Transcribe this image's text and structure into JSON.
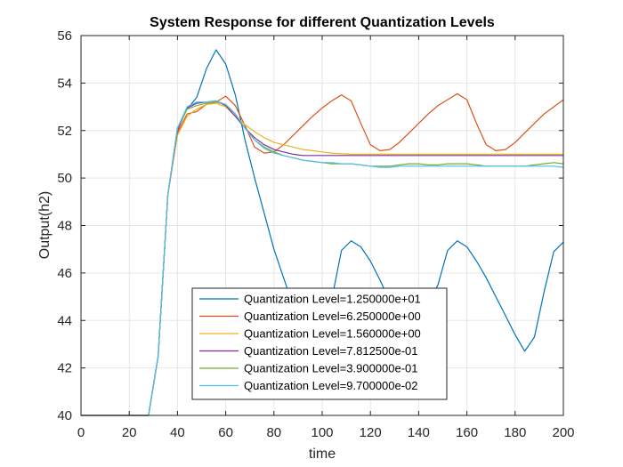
{
  "chart_data": {
    "type": "line",
    "title": "System Response for different Quantization Levels",
    "xlabel": "time",
    "ylabel": "Output(h2)",
    "xlim": [
      0,
      200
    ],
    "ylim": [
      40,
      56
    ],
    "xticks": [
      0,
      20,
      40,
      60,
      80,
      100,
      120,
      140,
      160,
      180,
      200
    ],
    "yticks": [
      40,
      42,
      44,
      46,
      48,
      50,
      52,
      54,
      56
    ],
    "grid": true,
    "legend_position": "bottom-center",
    "series": [
      {
        "name": "Quantization Level=1.250000e+01",
        "color": "#0072BD",
        "x": [
          0,
          4,
          8,
          12,
          16,
          20,
          24,
          28,
          32,
          36,
          40,
          44,
          48,
          52,
          56,
          60,
          64,
          68,
          72,
          76,
          80,
          84,
          88,
          92,
          96,
          100,
          104,
          108,
          112,
          116,
          120,
          124,
          128,
          132,
          136,
          140,
          144,
          148,
          152,
          156,
          160,
          164,
          168,
          172,
          176,
          180,
          184,
          188,
          192,
          196,
          200
        ],
        "y": [
          40,
          40,
          40,
          40,
          40,
          40,
          40,
          40,
          42.5,
          49.3,
          52.1,
          52.9,
          53.4,
          54.6,
          55.4,
          54.8,
          53.5,
          51.6,
          50.0,
          48.5,
          47.0,
          45.8,
          44.6,
          44.3,
          44.3,
          44.2,
          44.9,
          46.95,
          47.35,
          47.1,
          46.5,
          45.7,
          44.8,
          44.5,
          44.4,
          44.4,
          44.7,
          45.5,
          46.95,
          47.35,
          47.1,
          46.5,
          45.8,
          45.0,
          44.2,
          43.4,
          42.7,
          43.3,
          45.2,
          46.9,
          47.3
        ]
      },
      {
        "name": "Quantization Level=6.250000e+00",
        "color": "#D95319",
        "x": [
          0,
          4,
          8,
          12,
          16,
          20,
          24,
          28,
          32,
          36,
          40,
          44,
          48,
          52,
          56,
          60,
          64,
          68,
          72,
          76,
          80,
          84,
          88,
          92,
          96,
          100,
          104,
          108,
          112,
          116,
          120,
          124,
          128,
          132,
          136,
          140,
          144,
          148,
          152,
          156,
          160,
          164,
          168,
          172,
          176,
          180,
          184,
          188,
          192,
          196,
          200
        ],
        "y": [
          40,
          40,
          40,
          40,
          40,
          40,
          40,
          40,
          42.5,
          49.3,
          51.9,
          52.7,
          52.8,
          53.1,
          53.2,
          53.45,
          53.05,
          52.2,
          51.3,
          51.05,
          51.1,
          51.4,
          51.8,
          52.2,
          52.6,
          52.95,
          53.25,
          53.5,
          53.25,
          52.3,
          51.4,
          51.15,
          51.2,
          51.5,
          51.9,
          52.3,
          52.7,
          53.05,
          53.3,
          53.55,
          53.3,
          52.3,
          51.4,
          51.15,
          51.2,
          51.5,
          51.9,
          52.3,
          52.7,
          53.0,
          53.3
        ]
      },
      {
        "name": "Quantization Level=1.560000e+00",
        "color": "#EDB120",
        "x": [
          0,
          4,
          8,
          12,
          16,
          20,
          24,
          28,
          32,
          36,
          40,
          44,
          48,
          52,
          56,
          60,
          64,
          68,
          72,
          76,
          80,
          84,
          88,
          92,
          96,
          100,
          104,
          108,
          112,
          116,
          120,
          124,
          128,
          132,
          136,
          140,
          144,
          148,
          152,
          156,
          160,
          164,
          168,
          172,
          176,
          180,
          184,
          188,
          192,
          196,
          200
        ],
        "y": [
          40,
          40,
          40,
          40,
          40,
          40,
          40,
          40,
          42.5,
          49.3,
          51.8,
          52.6,
          52.9,
          53.1,
          53.15,
          53.0,
          52.6,
          52.25,
          51.95,
          51.7,
          51.5,
          51.4,
          51.3,
          51.2,
          51.15,
          51.1,
          51.05,
          51.02,
          51.0,
          51.0,
          51.0,
          51.0,
          51.0,
          51.0,
          51.0,
          51.0,
          51.0,
          51.0,
          51.0,
          51.0,
          51.0,
          51.0,
          51.0,
          51.0,
          51.0,
          51.0,
          51.0,
          51.0,
          51.0,
          51.0,
          51.0
        ]
      },
      {
        "name": "Quantization Level=7.812500e-01",
        "color": "#7E2F8E",
        "x": [
          0,
          4,
          8,
          12,
          16,
          20,
          24,
          28,
          32,
          36,
          40,
          44,
          48,
          52,
          56,
          60,
          64,
          68,
          72,
          76,
          80,
          84,
          88,
          92,
          96,
          100,
          104,
          108,
          112,
          116,
          120,
          124,
          128,
          132,
          136,
          140,
          144,
          148,
          152,
          156,
          160,
          164,
          168,
          172,
          176,
          180,
          184,
          188,
          192,
          196,
          200
        ],
        "y": [
          40,
          40,
          40,
          40,
          40,
          40,
          40,
          40,
          42.5,
          49.3,
          52.0,
          52.95,
          53.15,
          53.2,
          53.25,
          53.05,
          52.6,
          52.1,
          51.7,
          51.4,
          51.2,
          51.1,
          51.0,
          50.95,
          50.95,
          50.95,
          50.95,
          50.95,
          50.95,
          50.95,
          50.95,
          50.95,
          50.95,
          50.95,
          50.95,
          50.95,
          50.95,
          50.95,
          50.95,
          50.95,
          50.95,
          50.95,
          50.95,
          50.95,
          50.95,
          50.95,
          50.95,
          50.95,
          50.95,
          50.95,
          50.95
        ]
      },
      {
        "name": "Quantization Level=3.900000e-01",
        "color": "#77AC30",
        "x": [
          0,
          4,
          8,
          12,
          16,
          20,
          24,
          28,
          32,
          36,
          40,
          44,
          48,
          52,
          56,
          60,
          64,
          68,
          72,
          76,
          80,
          84,
          88,
          92,
          96,
          100,
          104,
          108,
          112,
          116,
          120,
          124,
          128,
          132,
          136,
          140,
          144,
          148,
          152,
          156,
          160,
          164,
          168,
          172,
          176,
          180,
          184,
          188,
          192,
          196,
          200
        ],
        "y": [
          40,
          40,
          40,
          40,
          40,
          40,
          40,
          40,
          42.5,
          49.3,
          52.1,
          52.9,
          53.05,
          53.15,
          53.2,
          53.1,
          52.7,
          52.1,
          51.6,
          51.3,
          51.1,
          50.95,
          50.85,
          50.75,
          50.7,
          50.65,
          50.6,
          50.6,
          50.6,
          50.55,
          50.5,
          50.5,
          50.5,
          50.55,
          50.6,
          50.6,
          50.55,
          50.55,
          50.6,
          50.6,
          50.6,
          50.55,
          50.5,
          50.5,
          50.5,
          50.5,
          50.5,
          50.55,
          50.6,
          50.65,
          50.6
        ]
      },
      {
        "name": "Quantization Level=9.700000e-02",
        "color": "#4DBEEE",
        "x": [
          0,
          4,
          8,
          12,
          16,
          20,
          24,
          28,
          32,
          36,
          40,
          44,
          48,
          52,
          56,
          60,
          64,
          68,
          72,
          76,
          80,
          84,
          88,
          92,
          96,
          100,
          104,
          108,
          112,
          116,
          120,
          124,
          128,
          132,
          136,
          140,
          144,
          148,
          152,
          156,
          160,
          164,
          168,
          172,
          176,
          180,
          184,
          188,
          192,
          196,
          200
        ],
        "y": [
          40,
          40,
          40,
          40,
          40,
          40,
          40,
          40,
          42.5,
          49.3,
          52.1,
          53.0,
          53.2,
          53.2,
          53.25,
          53.1,
          52.7,
          52.1,
          51.6,
          51.25,
          51.05,
          50.95,
          50.85,
          50.75,
          50.7,
          50.65,
          50.65,
          50.6,
          50.6,
          50.55,
          50.5,
          50.45,
          50.45,
          50.5,
          50.5,
          50.5,
          50.5,
          50.5,
          50.5,
          50.5,
          50.5,
          50.5,
          50.5,
          50.5,
          50.5,
          50.5,
          50.5,
          50.5,
          50.5,
          50.5,
          50.45
        ]
      }
    ]
  }
}
